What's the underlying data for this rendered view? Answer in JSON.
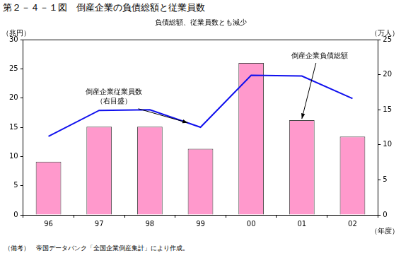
{
  "chart_data": {
    "type": "bar",
    "title": "第２－４－１図　倒産企業の負債総額と従業員数",
    "subtitle": "負債総額、従業員数とも減少",
    "x_label": "（年度）",
    "y_label": "（兆円）",
    "y2_label": "（万人）",
    "note": "（備考）　帝国データバンク「全国企業倒産集計」により作成。",
    "categories": [
      "96",
      "97",
      "98",
      "99",
      "00",
      "01",
      "02"
    ],
    "series": [
      {
        "name": "倒産企業負債総額",
        "type": "bar",
        "color": "#ff99cc",
        "values": [
          9.1,
          15.1,
          15.1,
          11.3,
          26.0,
          16.2,
          13.4
        ]
      },
      {
        "name": "倒産企業従業員数（右目盛）",
        "type": "line",
        "color": "#1010ee",
        "marker": "none",
        "line_style": "solid",
        "axis": "y2",
        "values": [
          11.2,
          14.9,
          15.0,
          12.5,
          19.9,
          19.8,
          16.6
        ]
      }
    ],
    "ylim": [
      0,
      30
    ],
    "yticks": [
      0,
      5,
      10,
      15,
      20,
      25,
      30
    ],
    "y2lim": [
      0,
      25
    ],
    "y2ticks": [
      0,
      5,
      10,
      15,
      20,
      25
    ],
    "grid": false
  }
}
